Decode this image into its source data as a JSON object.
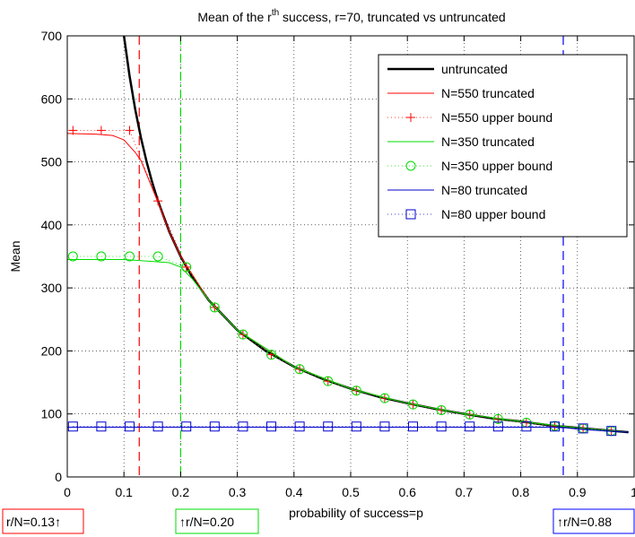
{
  "chart_data": {
    "type": "line",
    "title_prefix": "Mean of the r",
    "title_sup": "th",
    "title_suffix": " success, r=70, truncated vs untruncated",
    "xlabel": "probability of success=p",
    "ylabel": "Mean",
    "xlim": [
      0,
      1
    ],
    "ylim": [
      0,
      700
    ],
    "x_ticks": [
      "0",
      "0.1",
      "0.2",
      "0.3",
      "0.4",
      "0.5",
      "0.6",
      "0.7",
      "0.8",
      "0.9",
      "1"
    ],
    "y_ticks": [
      "0",
      "100",
      "200",
      "300",
      "400",
      "500",
      "600",
      "700"
    ],
    "grid": true,
    "legend_position": "top-right",
    "series": [
      {
        "name": "untruncated",
        "color": "#000000",
        "style": "solid",
        "points": [
          [
            0.1,
            700
          ],
          [
            0.11,
            636
          ],
          [
            0.12,
            583
          ],
          [
            0.13,
            538
          ],
          [
            0.14,
            500
          ],
          [
            0.15,
            467
          ],
          [
            0.16,
            438
          ],
          [
            0.18,
            389
          ],
          [
            0.2,
            350
          ],
          [
            0.22,
            318
          ],
          [
            0.25,
            280
          ],
          [
            0.3,
            233
          ],
          [
            0.35,
            200
          ],
          [
            0.4,
            175
          ],
          [
            0.45,
            156
          ],
          [
            0.5,
            140
          ],
          [
            0.55,
            127
          ],
          [
            0.6,
            117
          ],
          [
            0.65,
            108
          ],
          [
            0.7,
            100
          ],
          [
            0.75,
            93
          ],
          [
            0.8,
            88
          ],
          [
            0.85,
            82
          ],
          [
            0.9,
            78
          ],
          [
            0.95,
            74
          ],
          [
            0.99,
            71
          ]
        ]
      },
      {
        "name": "N=550 truncated",
        "color": "#ff0000",
        "style": "solid",
        "points": [
          [
            0.0,
            545
          ],
          [
            0.05,
            544
          ],
          [
            0.08,
            542
          ],
          [
            0.1,
            535
          ],
          [
            0.12,
            515
          ],
          [
            0.13,
            502
          ],
          [
            0.14,
            480
          ],
          [
            0.15,
            458
          ],
          [
            0.16,
            436
          ],
          [
            0.18,
            389
          ],
          [
            0.2,
            350
          ],
          [
            0.25,
            280
          ],
          [
            0.3,
            233
          ],
          [
            0.4,
            175
          ],
          [
            0.5,
            140
          ],
          [
            0.6,
            117
          ],
          [
            0.7,
            100
          ],
          [
            0.8,
            88
          ],
          [
            0.9,
            78
          ],
          [
            0.99,
            71
          ]
        ]
      },
      {
        "name": "N=550 upper bound",
        "color": "#ff0000",
        "style": "dotted",
        "marker": "+",
        "points": [
          [
            0.01,
            550
          ],
          [
            0.06,
            550
          ],
          [
            0.11,
            550
          ],
          [
            0.16,
            438
          ],
          [
            0.21,
            333
          ],
          [
            0.26,
            269
          ],
          [
            0.31,
            226
          ],
          [
            0.36,
            194
          ],
          [
            0.41,
            171
          ],
          [
            0.46,
            152
          ],
          [
            0.51,
            137
          ],
          [
            0.56,
            125
          ],
          [
            0.61,
            115
          ],
          [
            0.66,
            106
          ],
          [
            0.71,
            99
          ],
          [
            0.76,
            92
          ],
          [
            0.81,
            86
          ],
          [
            0.86,
            81
          ],
          [
            0.91,
            77
          ],
          [
            0.96,
            73
          ]
        ]
      },
      {
        "name": "N=350 truncated",
        "color": "#00dd00",
        "style": "solid",
        "points": [
          [
            0.0,
            345
          ],
          [
            0.1,
            345
          ],
          [
            0.15,
            342
          ],
          [
            0.18,
            340
          ],
          [
            0.2,
            333
          ],
          [
            0.22,
            315
          ],
          [
            0.25,
            280
          ],
          [
            0.3,
            233
          ],
          [
            0.4,
            175
          ],
          [
            0.5,
            140
          ],
          [
            0.6,
            117
          ],
          [
            0.7,
            100
          ],
          [
            0.8,
            88
          ],
          [
            0.9,
            78
          ],
          [
            0.99,
            71
          ]
        ]
      },
      {
        "name": "N=350 upper bound",
        "color": "#00dd00",
        "style": "dotted",
        "marker": "o",
        "points": [
          [
            0.01,
            350
          ],
          [
            0.06,
            350
          ],
          [
            0.11,
            350
          ],
          [
            0.16,
            350
          ],
          [
            0.21,
            333
          ],
          [
            0.26,
            269
          ],
          [
            0.31,
            226
          ],
          [
            0.36,
            194
          ],
          [
            0.41,
            171
          ],
          [
            0.46,
            152
          ],
          [
            0.51,
            137
          ],
          [
            0.56,
            125
          ],
          [
            0.61,
            115
          ],
          [
            0.66,
            106
          ],
          [
            0.71,
            99
          ],
          [
            0.76,
            92
          ],
          [
            0.81,
            86
          ],
          [
            0.86,
            81
          ],
          [
            0.91,
            77
          ],
          [
            0.96,
            73
          ]
        ]
      },
      {
        "name": "N=80 truncated",
        "color": "#0000cc",
        "style": "solid",
        "points": [
          [
            0.0,
            79
          ],
          [
            0.3,
            79
          ],
          [
            0.6,
            79
          ],
          [
            0.8,
            79
          ],
          [
            0.85,
            79
          ],
          [
            0.88,
            78
          ],
          [
            0.9,
            76
          ],
          [
            0.95,
            73
          ],
          [
            0.99,
            71
          ]
        ]
      },
      {
        "name": "N=80 upper bound",
        "color": "#0000cc",
        "style": "dotted",
        "marker": "s",
        "points": [
          [
            0.01,
            80
          ],
          [
            0.06,
            80
          ],
          [
            0.11,
            80
          ],
          [
            0.16,
            80
          ],
          [
            0.21,
            80
          ],
          [
            0.26,
            80
          ],
          [
            0.31,
            80
          ],
          [
            0.36,
            80
          ],
          [
            0.41,
            80
          ],
          [
            0.46,
            80
          ],
          [
            0.51,
            80
          ],
          [
            0.56,
            80
          ],
          [
            0.61,
            80
          ],
          [
            0.66,
            80
          ],
          [
            0.71,
            80
          ],
          [
            0.76,
            80
          ],
          [
            0.81,
            80
          ],
          [
            0.86,
            80
          ],
          [
            0.91,
            77
          ],
          [
            0.96,
            73
          ]
        ]
      }
    ],
    "vlines": [
      {
        "x": 0.127,
        "color": "#ff0000",
        "style": "dashed"
      },
      {
        "x": 0.2,
        "color": "#00dd00",
        "style": "dashdot"
      },
      {
        "x": 0.875,
        "color": "#0000ff",
        "style": "dashed"
      }
    ],
    "annotations": [
      {
        "label": "r/N=0.13↑",
        "color": "#ff0000"
      },
      {
        "label": "↑r/N=0.20",
        "color": "#00dd00"
      },
      {
        "label": "↑r/N=0.88",
        "color": "#0000ff"
      }
    ]
  }
}
